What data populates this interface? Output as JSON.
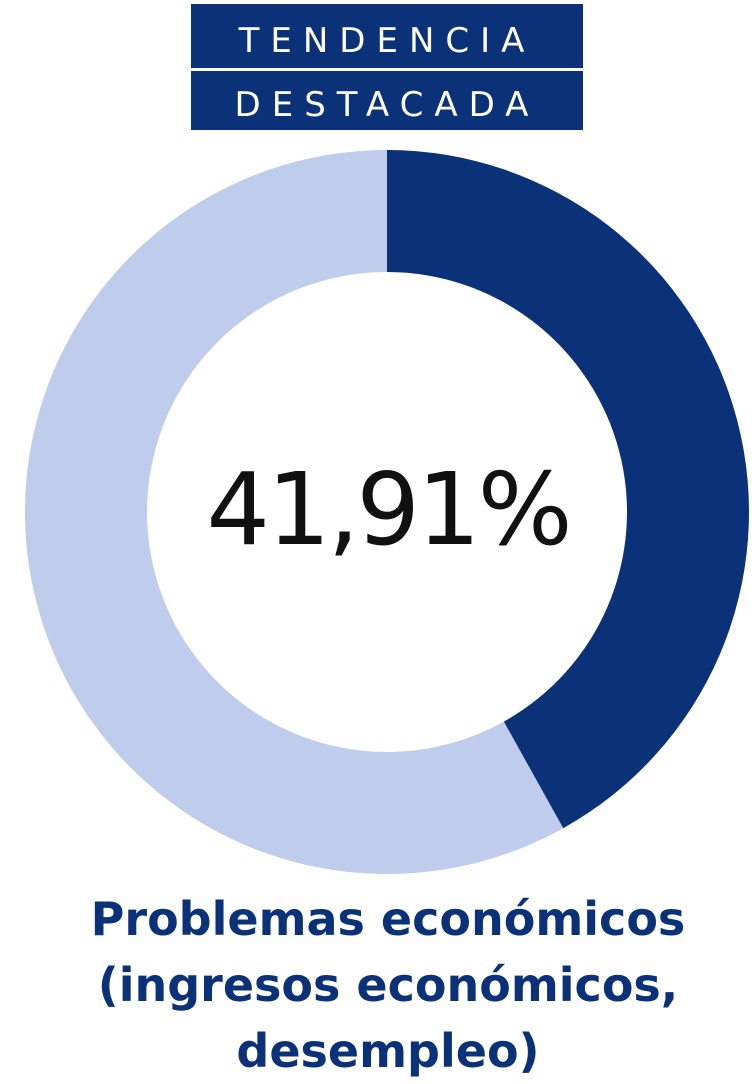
{
  "badge": {
    "line1": "TENDENCIA",
    "line2": "DESTACADA",
    "background_color": "#0b3278"
  },
  "chart_data": {
    "type": "pie",
    "variant": "donut",
    "center_label": "41,91%",
    "slices": [
      {
        "value": 41.91,
        "color": "#0b3278"
      },
      {
        "value": 58.09,
        "color": "#bfcceb"
      }
    ]
  },
  "caption": {
    "line1": "Problemas económicos",
    "line2": "(ingresos económicos,",
    "line3": "desempleo)"
  }
}
